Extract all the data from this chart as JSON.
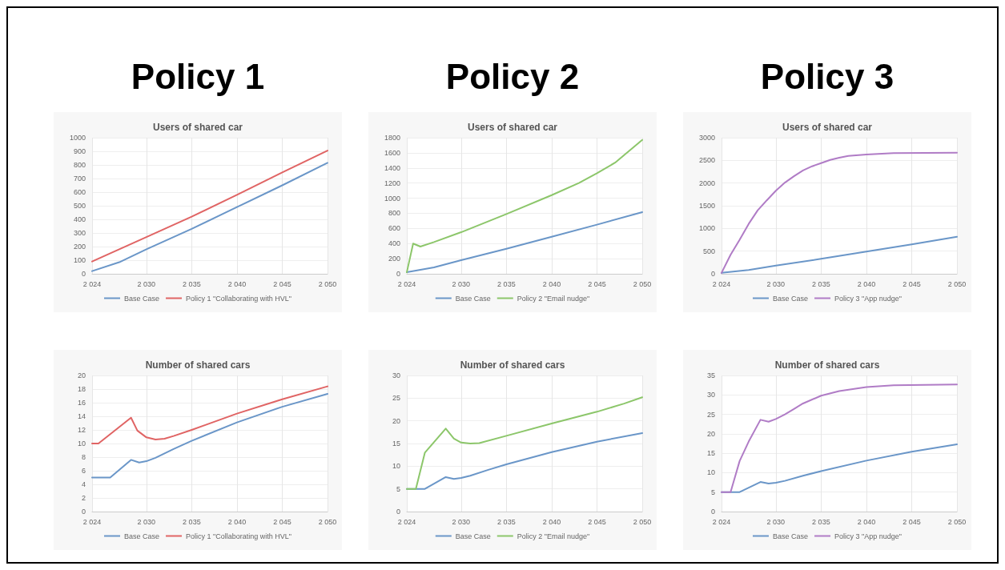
{
  "chart_data": [
    {
      "type": "line",
      "title": "Users of shared car",
      "annotations": [
        "Policy 1"
      ],
      "xlim": [
        2024,
        2050
      ],
      "xticks": [
        {
          "value": 2024,
          "label": "2 024"
        },
        {
          "value": 2030,
          "label": "2 030"
        },
        {
          "value": 2035,
          "label": "2 035"
        },
        {
          "value": 2040,
          "label": "2 040"
        },
        {
          "value": 2045,
          "label": "2 045"
        },
        {
          "value": 2050,
          "label": "2 050"
        }
      ],
      "ylim": [
        0,
        1000
      ],
      "yticks": [
        0,
        100,
        200,
        300,
        400,
        500,
        600,
        700,
        800,
        900,
        1000
      ],
      "grid": true,
      "legend": "bottom",
      "marker": "none",
      "line_style": "solid",
      "series": [
        {
          "name": "Base Case",
          "color": "#6a96c8",
          "x": [
            2024,
            2027,
            2030,
            2035,
            2040,
            2045,
            2050
          ],
          "values": [
            20,
            85,
            180,
            330,
            490,
            650,
            815
          ]
        },
        {
          "name": "Policy 1 \"Collaborating with HVL\"",
          "color": "#e06464",
          "x": [
            2024,
            2030,
            2035,
            2040,
            2045,
            2050
          ],
          "values": [
            90,
            270,
            420,
            580,
            745,
            905
          ]
        }
      ]
    },
    {
      "type": "line",
      "title": "Users of shared car",
      "annotations": [
        "Policy 2"
      ],
      "xlim": [
        2024,
        2050
      ],
      "xticks": [
        {
          "value": 2024,
          "label": "2 024"
        },
        {
          "value": 2030,
          "label": "2 030"
        },
        {
          "value": 2035,
          "label": "2 035"
        },
        {
          "value": 2040,
          "label": "2 040"
        },
        {
          "value": 2045,
          "label": "2 045"
        },
        {
          "value": 2050,
          "label": "2 050"
        }
      ],
      "ylim": [
        0,
        1800
      ],
      "yticks": [
        0,
        200,
        400,
        600,
        800,
        1000,
        1200,
        1400,
        1600,
        1800
      ],
      "grid": true,
      "legend": "bottom",
      "marker": "none",
      "line_style": "solid",
      "series": [
        {
          "name": "Base Case",
          "color": "#6a96c8",
          "x": [
            2024,
            2027,
            2030,
            2035,
            2040,
            2045,
            2050
          ],
          "values": [
            20,
            85,
            180,
            330,
            490,
            650,
            815
          ]
        },
        {
          "name": "Policy 2 \"Email nudge\"",
          "color": "#8cc66a",
          "x": [
            2024,
            2024.7,
            2025.5,
            2027,
            2030,
            2035,
            2040,
            2043,
            2045,
            2047,
            2050
          ],
          "values": [
            20,
            400,
            360,
            420,
            550,
            790,
            1040,
            1200,
            1330,
            1470,
            1770
          ]
        }
      ]
    },
    {
      "type": "line",
      "title": "Users of shared car",
      "annotations": [
        "Policy 3"
      ],
      "xlim": [
        2024,
        2050
      ],
      "xticks": [
        {
          "value": 2024,
          "label": "2 024"
        },
        {
          "value": 2030,
          "label": "2 030"
        },
        {
          "value": 2035,
          "label": "2 035"
        },
        {
          "value": 2040,
          "label": "2 040"
        },
        {
          "value": 2045,
          "label": "2 045"
        },
        {
          "value": 2050,
          "label": "2 050"
        }
      ],
      "ylim": [
        0,
        3000
      ],
      "yticks": [
        0,
        500,
        1000,
        1500,
        2000,
        2500,
        3000
      ],
      "grid": true,
      "legend": "bottom",
      "marker": "none",
      "line_style": "solid",
      "series": [
        {
          "name": "Base Case",
          "color": "#6a96c8",
          "x": [
            2024,
            2027,
            2030,
            2035,
            2040,
            2045,
            2050
          ],
          "values": [
            20,
            85,
            180,
            330,
            490,
            650,
            815
          ]
        },
        {
          "name": "Policy 3 \"App nudge\"",
          "color": "#b07cc6",
          "x": [
            2024,
            2025,
            2026,
            2027,
            2028,
            2029,
            2030,
            2031,
            2032,
            2033,
            2034,
            2035,
            2036,
            2037,
            2038,
            2040,
            2043,
            2050
          ],
          "values": [
            20,
            420,
            750,
            1100,
            1400,
            1620,
            1830,
            2010,
            2150,
            2280,
            2370,
            2440,
            2510,
            2560,
            2600,
            2630,
            2660,
            2670
          ]
        }
      ]
    },
    {
      "type": "line",
      "title": "Number of shared cars",
      "xlim": [
        2024,
        2050
      ],
      "xticks": [
        {
          "value": 2024,
          "label": "2 024"
        },
        {
          "value": 2030,
          "label": "2 030"
        },
        {
          "value": 2035,
          "label": "2 035"
        },
        {
          "value": 2040,
          "label": "2 040"
        },
        {
          "value": 2045,
          "label": "2 045"
        },
        {
          "value": 2050,
          "label": "2 050"
        }
      ],
      "ylim": [
        0,
        20
      ],
      "yticks": [
        0,
        2,
        4,
        6,
        8,
        10,
        12,
        14,
        16,
        18,
        20
      ],
      "grid": true,
      "legend": "bottom",
      "marker": "none",
      "line_style": "solid",
      "series": [
        {
          "name": "Base Case",
          "color": "#6a96c8",
          "x": [
            2024,
            2025,
            2026,
            2028.3,
            2029.2,
            2030,
            2031,
            2033,
            2035,
            2040,
            2045,
            2050
          ],
          "values": [
            5,
            5,
            5,
            7.6,
            7.2,
            7.4,
            7.9,
            9.2,
            10.4,
            13.1,
            15.4,
            17.3
          ]
        },
        {
          "name": "Policy 1 \"Collaborating with HVL\"",
          "color": "#e06464",
          "x": [
            2024,
            2024.7,
            2028.3,
            2029,
            2030,
            2031,
            2032,
            2033,
            2035,
            2040,
            2045,
            2050
          ],
          "values": [
            10,
            10,
            13.8,
            11.9,
            10.9,
            10.6,
            10.7,
            11.1,
            12,
            14.4,
            16.5,
            18.4
          ]
        }
      ]
    },
    {
      "type": "line",
      "title": "Number of shared cars",
      "xlim": [
        2024,
        2050
      ],
      "xticks": [
        {
          "value": 2024,
          "label": "2 024"
        },
        {
          "value": 2030,
          "label": "2 030"
        },
        {
          "value": 2035,
          "label": "2 035"
        },
        {
          "value": 2040,
          "label": "2 040"
        },
        {
          "value": 2045,
          "label": "2 045"
        },
        {
          "value": 2050,
          "label": "2 050"
        }
      ],
      "ylim": [
        0,
        30
      ],
      "yticks": [
        0,
        5,
        10,
        15,
        20,
        25,
        30
      ],
      "grid": true,
      "legend": "bottom",
      "marker": "none",
      "line_style": "solid",
      "series": [
        {
          "name": "Base Case",
          "color": "#6a96c8",
          "x": [
            2024,
            2025,
            2026,
            2028.3,
            2029.2,
            2030,
            2031,
            2033,
            2035,
            2040,
            2045,
            2050
          ],
          "values": [
            5,
            5,
            5,
            7.6,
            7.2,
            7.4,
            7.9,
            9.2,
            10.4,
            13.1,
            15.4,
            17.3
          ]
        },
        {
          "name": "Policy 2 \"Email nudge\"",
          "color": "#8cc66a",
          "x": [
            2024,
            2025,
            2026,
            2028.3,
            2029.2,
            2030,
            2031,
            2032,
            2035,
            2040,
            2045,
            2048,
            2050
          ],
          "values": [
            5,
            5,
            13,
            18.3,
            16.1,
            15.2,
            15,
            15.1,
            16.7,
            19.4,
            22,
            23.8,
            25.2
          ]
        }
      ]
    },
    {
      "type": "line",
      "title": "Number of shared cars",
      "xlim": [
        2024,
        2050
      ],
      "xticks": [
        {
          "value": 2024,
          "label": "2 024"
        },
        {
          "value": 2030,
          "label": "2 030"
        },
        {
          "value": 2035,
          "label": "2 035"
        },
        {
          "value": 2040,
          "label": "2 040"
        },
        {
          "value": 2045,
          "label": "2 045"
        },
        {
          "value": 2050,
          "label": "2 050"
        }
      ],
      "ylim": [
        0,
        35
      ],
      "yticks": [
        0,
        5,
        10,
        15,
        20,
        25,
        30,
        35
      ],
      "grid": true,
      "legend": "bottom",
      "marker": "none",
      "line_style": "solid",
      "series": [
        {
          "name": "Base Case",
          "color": "#6a96c8",
          "x": [
            2024,
            2025,
            2026,
            2028.3,
            2029.2,
            2030,
            2031,
            2033,
            2035,
            2040,
            2045,
            2050
          ],
          "values": [
            5,
            5,
            5,
            7.6,
            7.2,
            7.4,
            7.9,
            9.2,
            10.4,
            13.1,
            15.4,
            17.3
          ]
        },
        {
          "name": "Policy 3 \"App nudge\"",
          "color": "#b07cc6",
          "x": [
            2024,
            2025,
            2026,
            2027,
            2028.3,
            2029.2,
            2030,
            2031,
            2032,
            2033,
            2035,
            2037,
            2040,
            2043,
            2050
          ],
          "values": [
            5,
            5,
            13,
            18,
            23.6,
            23.1,
            23.8,
            25,
            26.4,
            27.8,
            29.8,
            31,
            32,
            32.5,
            32.7
          ]
        }
      ]
    }
  ]
}
